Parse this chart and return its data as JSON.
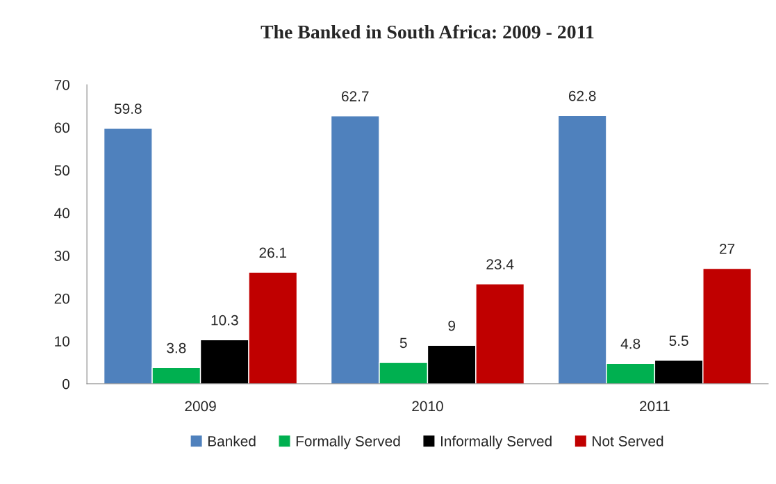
{
  "chart_data": {
    "type": "bar",
    "title": "The Banked in South Africa: 2009 - 2011",
    "categories": [
      "2009",
      "2010",
      "2011"
    ],
    "series": [
      {
        "name": "Banked",
        "color": "#4f81bd",
        "values": [
          59.8,
          62.7,
          62.8
        ]
      },
      {
        "name": "Formally Served",
        "color": "#00b050",
        "values": [
          3.8,
          5,
          4.8
        ]
      },
      {
        "name": "Informally Served",
        "color": "#000000",
        "values": [
          10.3,
          9,
          5.5
        ]
      },
      {
        "name": "Not Served",
        "color": "#c00000",
        "values": [
          26.1,
          23.4,
          27
        ]
      }
    ],
    "ylim": [
      0,
      70
    ],
    "yticks": [
      0,
      10,
      20,
      30,
      40,
      50,
      60,
      70
    ],
    "data_labels": true,
    "grid": false,
    "legend": "bottom"
  }
}
